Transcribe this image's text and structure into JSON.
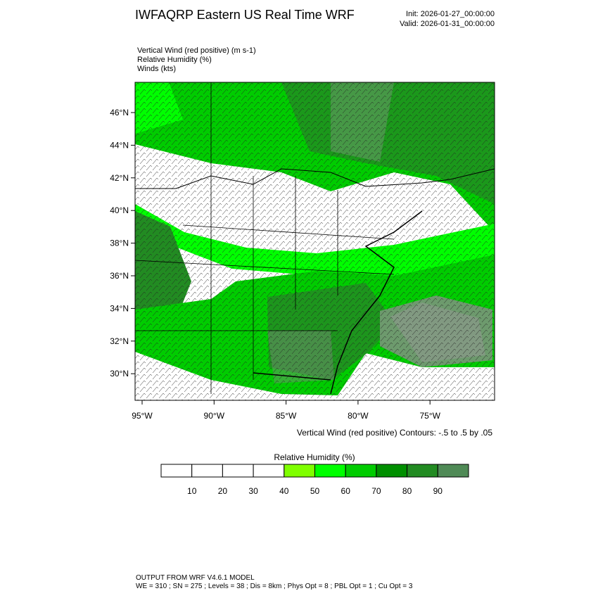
{
  "header": {
    "title": "IWFAQRP Eastern US Real Time WRF",
    "init": "Init: 2026-01-27_00:00:00",
    "valid": "Valid: 2026-01-31_00:00:00"
  },
  "fields": [
    "Vertical Wind (red positive)   (m s-1)",
    "Relative Humidity   (%)",
    "Winds   (kts)"
  ],
  "map": {
    "lat_ticks": [
      "46°N",
      "44°N",
      "42°N",
      "40°N",
      "38°N",
      "36°N",
      "34°N",
      "32°N",
      "30°N"
    ],
    "lon_ticks": [
      "95°W",
      "90°W",
      "85°W",
      "80°W",
      "75°W"
    ],
    "contour_note": "Vertical Wind (red positive) Contours: -.5 to .5 by .05"
  },
  "colorbar": {
    "title": "Relative Humidity  (%)",
    "levels": [
      10,
      20,
      30,
      40,
      50,
      60,
      70,
      80,
      90
    ],
    "colors": [
      "#ffffff",
      "#ffffff",
      "#ffffff",
      "#ffffff",
      "#7fff00",
      "#00ff00",
      "#00cc00",
      "#008f00",
      "#228b22",
      "#4f8a56"
    ]
  },
  "footer": {
    "line1": "OUTPUT FROM WRF V4.6.1 MODEL",
    "line2": "WE = 310 ; SN = 275 ; Levels = 38 ; Dis = 8km ; Phys Opt = 8 ; PBL Opt = 1 ; Cu Opt = 3"
  }
}
